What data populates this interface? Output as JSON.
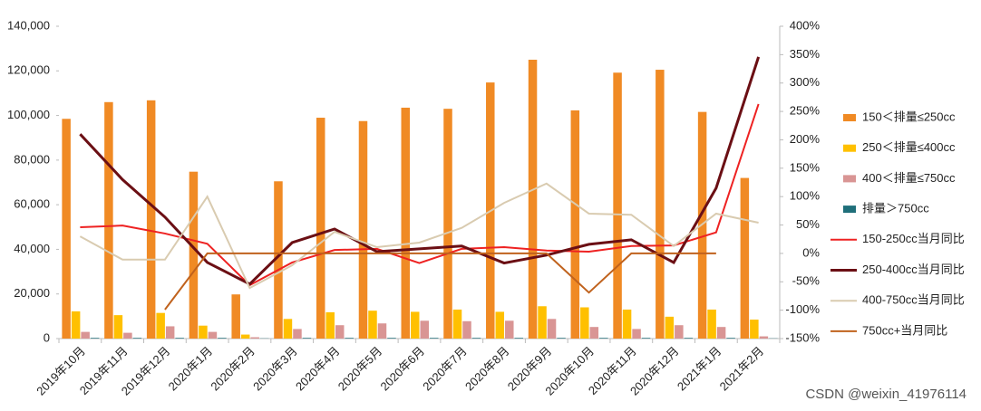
{
  "chart_data": {
    "type": "bar-line",
    "categories": [
      "2019年10月",
      "2019年11月",
      "2019年12月",
      "2020年1月",
      "2020年2月",
      "2020年3月",
      "2020年4月",
      "2020年5月",
      "2020年6月",
      "2020年7月",
      "2020年8月",
      "2020年9月",
      "2020年10月",
      "2020年11月",
      "2020年12月",
      "2021年1月",
      "2021年2月"
    ],
    "series": [
      {
        "name": "150＜排量≤250cc",
        "color": "#f08a24",
        "kind": "bar",
        "values": [
          98500,
          106000,
          106800,
          74800,
          19800,
          70500,
          99000,
          97500,
          103500,
          103000,
          114800,
          125000,
          102300,
          119200,
          120500,
          101600,
          72000
        ]
      },
      {
        "name": "250＜排量≤400cc",
        "color": "#ffc000",
        "kind": "bar",
        "values": [
          12200,
          10500,
          11500,
          5800,
          1800,
          8800,
          11800,
          12500,
          12000,
          13000,
          12000,
          14500,
          14000,
          13000,
          9800,
          13000,
          8500
        ]
      },
      {
        "name": "400＜排量≤750cc",
        "color": "#d99594",
        "kind": "bar",
        "values": [
          3000,
          2600,
          5500,
          3000,
          600,
          4300,
          6000,
          6800,
          8000,
          7800,
          8000,
          8800,
          5200,
          4300,
          6000,
          5200,
          1000
        ]
      },
      {
        "name": "排量＞750cc",
        "color": "#1f6f7a",
        "kind": "bar",
        "values": [
          300,
          300,
          300,
          300,
          100,
          300,
          300,
          300,
          300,
          300,
          300,
          300,
          300,
          300,
          300,
          300,
          100
        ]
      },
      {
        "name": "150-250cc当月同比",
        "color": "#ee2222",
        "kind": "line",
        "axis": "y2",
        "values": [
          46,
          49,
          35,
          17,
          -56,
          -16,
          6,
          8,
          -17,
          8,
          11,
          5,
          3,
          13,
          14,
          37,
          263
        ]
      },
      {
        "name": "250-400cc当月同比",
        "color": "#6b0f14",
        "kind": "line",
        "axis": "y2",
        "values": [
          210,
          130,
          64,
          -16,
          -54,
          19,
          43,
          3,
          8,
          13,
          -17,
          -3,
          16,
          24,
          -16,
          115,
          346
        ]
      },
      {
        "name": "400-750cc当月同比",
        "color": "#d9cbb0",
        "kind": "line",
        "axis": "y2",
        "values": [
          30,
          -11,
          -11,
          100,
          -61,
          -21,
          38,
          11,
          19,
          45,
          89,
          123,
          70,
          68,
          13,
          70,
          54
        ]
      },
      {
        "name": "750cc+当月同比",
        "color": "#c0621d",
        "kind": "line",
        "axis": "y2",
        "values": [
          null,
          null,
          -99,
          0,
          0,
          0,
          0,
          0,
          0,
          0,
          0,
          0,
          -69,
          0,
          0,
          0,
          null
        ]
      }
    ],
    "ylim": [
      0,
      140000
    ],
    "yticks": [
      0,
      {
        "value": 20000,
        "label": "20,000"
      },
      {
        "value": 40000,
        "label": "40,000"
      },
      {
        "value": 60000,
        "label": "60,000"
      },
      {
        "value": 80000,
        "label": "80,000"
      },
      {
        "value": 100000,
        "label": "100,000"
      },
      {
        "value": 120000,
        "label": "120,000"
      },
      {
        "value": 140000,
        "label": "140,000"
      }
    ],
    "y2lim": [
      -150,
      400
    ],
    "y2ticks": [
      {
        "value": -150,
        "label": "-150%"
      },
      {
        "value": -100,
        "label": "-100%"
      },
      {
        "value": -50,
        "label": "-50%"
      },
      {
        "value": 0,
        "label": "0%"
      },
      {
        "value": 50,
        "label": "50%"
      },
      {
        "value": 100,
        "label": "100%"
      },
      {
        "value": 150,
        "label": "150%"
      },
      {
        "value": 200,
        "label": "200%"
      },
      {
        "value": 250,
        "label": "250%"
      },
      {
        "value": 300,
        "label": "300%"
      },
      {
        "value": 350,
        "label": "350%"
      },
      {
        "value": 400,
        "label": "400%"
      }
    ],
    "legend": "right",
    "watermark": "CSDN @weixin_41976114"
  }
}
